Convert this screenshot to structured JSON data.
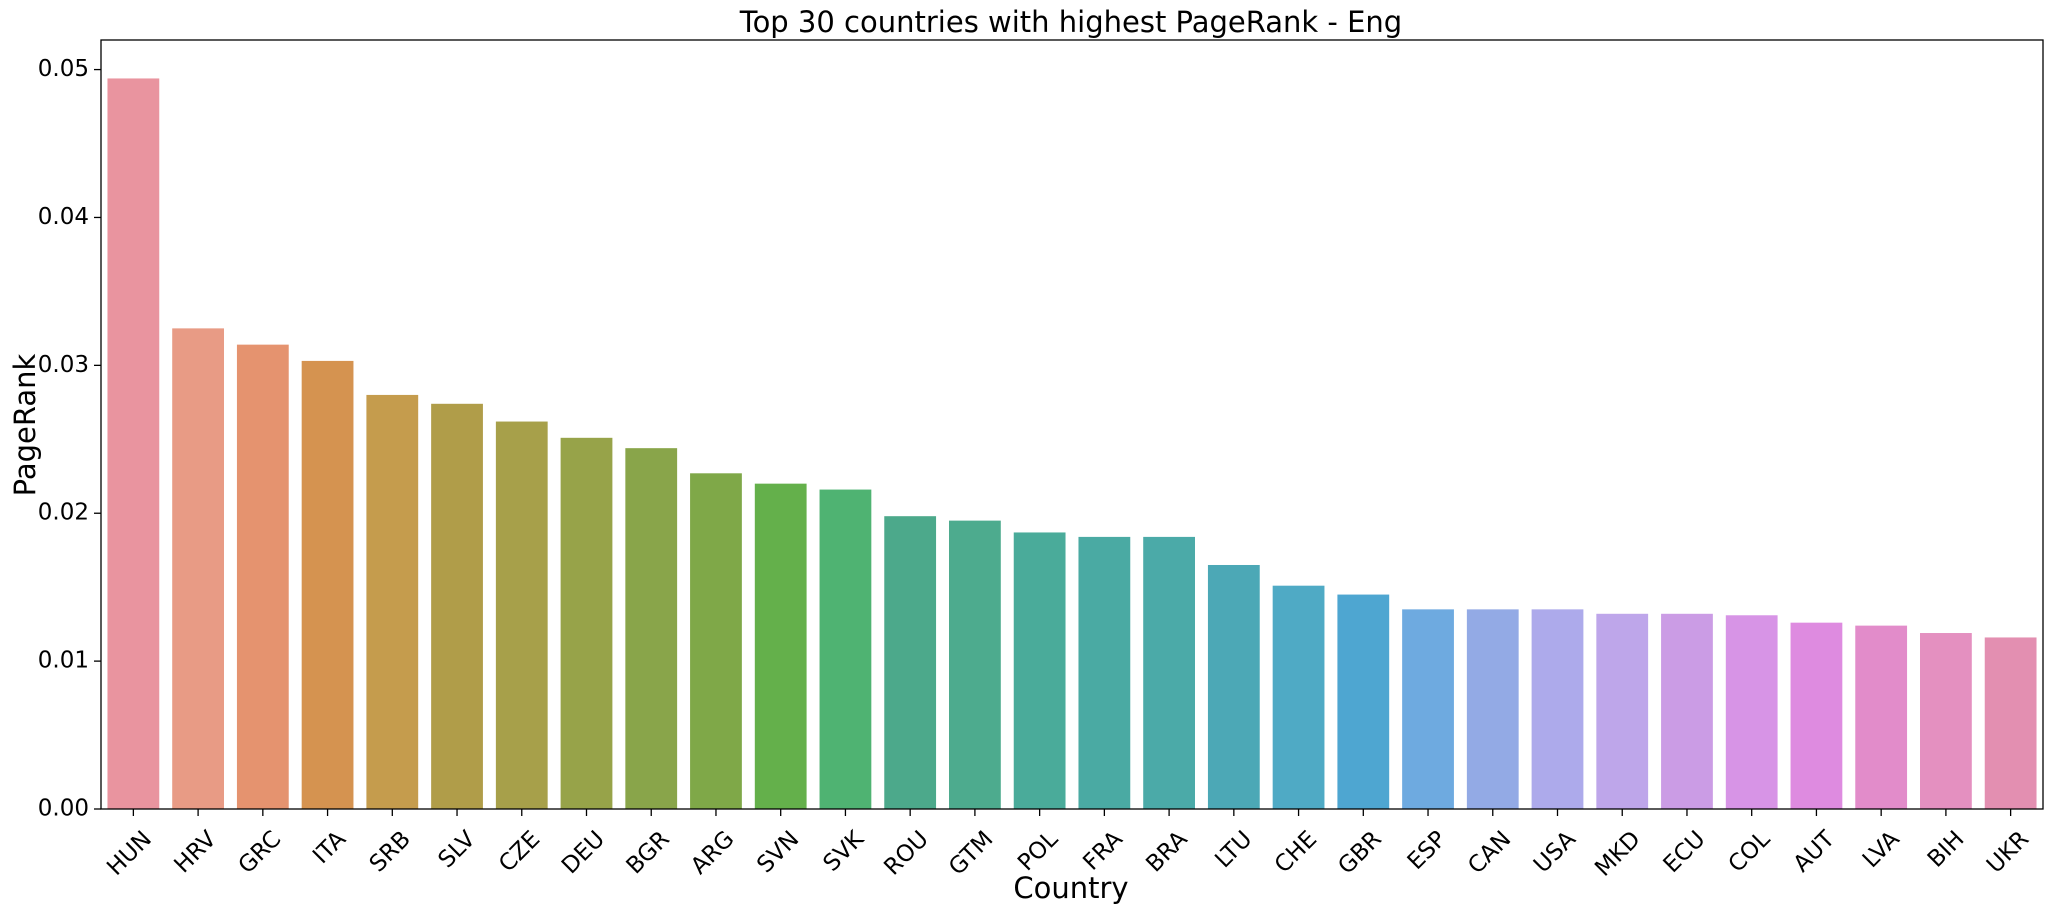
{
  "chart_data": {
    "type": "bar",
    "title": "Top 30 countries with highest PageRank - Eng",
    "xlabel": "Country",
    "ylabel": "PageRank",
    "ylim": [
      0,
      0.052
    ],
    "yticks": [
      0.0,
      0.01,
      0.02,
      0.03,
      0.04,
      0.05
    ],
    "ytick_labels": [
      "0.00",
      "0.01",
      "0.02",
      "0.03",
      "0.04",
      "0.05"
    ],
    "grid": false,
    "categories": [
      "HUN",
      "HRV",
      "GRC",
      "ITA",
      "SRB",
      "SLV",
      "CZE",
      "DEU",
      "BGR",
      "ARG",
      "SVN",
      "SVK",
      "ROU",
      "GTM",
      "POL",
      "FRA",
      "BRA",
      "LTU",
      "CHE",
      "GBR",
      "ESP",
      "CAN",
      "USA",
      "MKD",
      "ECU",
      "COL",
      "AUT",
      "LVA",
      "BIH",
      "UKR"
    ],
    "values": [
      0.0494,
      0.0325,
      0.0314,
      0.0303,
      0.028,
      0.0274,
      0.0262,
      0.0251,
      0.0244,
      0.0227,
      0.022,
      0.0216,
      0.0198,
      0.0195,
      0.0187,
      0.0184,
      0.0184,
      0.0165,
      0.0151,
      0.0145,
      0.0135,
      0.0135,
      0.0135,
      0.0132,
      0.0132,
      0.0131,
      0.0126,
      0.0124,
      0.0119,
      0.0116
    ],
    "colors": [
      "#e9949f",
      "#e89b85",
      "#e5936f",
      "#d59350",
      "#c59c4d",
      "#b09d49",
      "#a7a04a",
      "#97a349",
      "#89a54a",
      "#7fa848",
      "#64b04b",
      "#4fb372",
      "#4ca98b",
      "#4dab8e",
      "#4aab9a",
      "#4aaaa3",
      "#4baaa8",
      "#4ca8b6",
      "#4faac5",
      "#4ea6d1",
      "#6eaae0",
      "#93aae5",
      "#adaaeb",
      "#bea6ea",
      "#cb9ce5",
      "#d794e6",
      "#de8be0",
      "#e28cca",
      "#e490c0",
      "#e38fb1"
    ]
  }
}
